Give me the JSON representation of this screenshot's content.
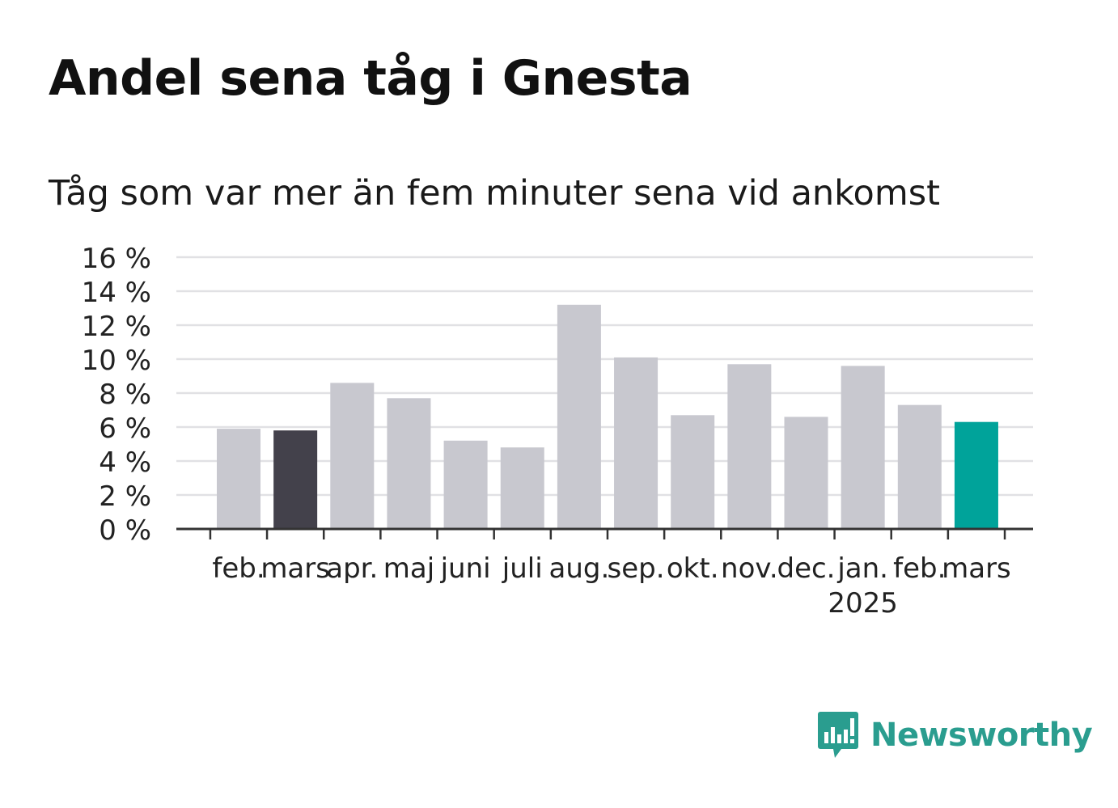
{
  "chart_data": {
    "type": "bar",
    "title": "Andel sena tåg i Gnesta",
    "subtitle": "Tåg som var mer än fem minuter sena vid ankomst",
    "categories": [
      "feb.",
      "mars",
      "apr.",
      "maj",
      "juni",
      "juli",
      "aug.",
      "sep.",
      "okt.",
      "nov.",
      "dec.",
      "jan.",
      "feb.",
      "mars"
    ],
    "year_label": {
      "text": "2025",
      "under_category_index": 11
    },
    "values": [
      5.9,
      5.8,
      8.6,
      7.7,
      5.2,
      4.8,
      13.2,
      10.1,
      6.7,
      9.7,
      6.6,
      9.6,
      7.3,
      6.3
    ],
    "ylim": [
      0,
      16
    ],
    "yticks": [
      0,
      2,
      4,
      6,
      8,
      10,
      12,
      14,
      16
    ],
    "ytick_labels": [
      "0 %",
      "2 %",
      "4 %",
      "6 %",
      "8 %",
      "10 %",
      "12 %",
      "14 %",
      "16 %"
    ],
    "xlabel": "",
    "ylabel": "",
    "grid": true,
    "colors": {
      "default": "#c8c8cf",
      "highlight_previous": "#43414b",
      "highlight_current": "#00a39a",
      "grid": "#e1e1e4",
      "axis": "#333333",
      "tick_text": "#222222"
    },
    "highlight": {
      "1": "highlight_previous",
      "13": "highlight_current"
    }
  },
  "brand": {
    "name": "Newsworthy",
    "logo_icon": "chat-bar-chart-icon",
    "color": "#2a9d8f"
  }
}
